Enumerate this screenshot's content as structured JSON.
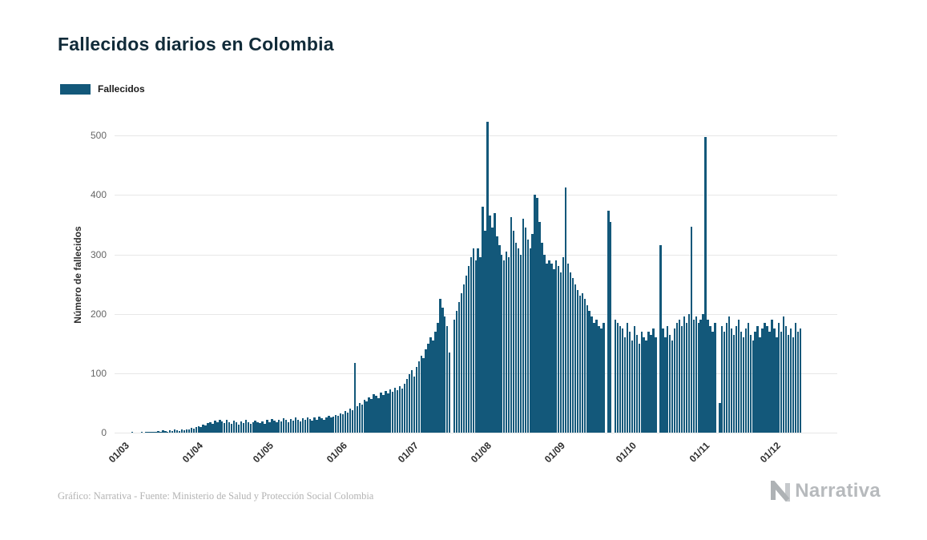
{
  "header": {
    "title": "Fallecidos diarios en Colombia"
  },
  "legend": {
    "label": "Fallecidos"
  },
  "footer": {
    "source": "Gráfico: Narrativa - Fuente: Ministerio de Salud y Protección Social Colombia",
    "brand": "Narrativa"
  },
  "chart_data": {
    "type": "bar",
    "title": "Fallecidos diarios en Colombia",
    "ylabel": "Número de fallecidos",
    "xlabel": "",
    "legend": [
      "Fallecidos"
    ],
    "legend_position": "top-left",
    "grid": "horizontal",
    "bar_color": "#13587a",
    "grid_color": "#e7e7e7",
    "ylim": [
      0,
      530
    ],
    "yticks": [
      0,
      100,
      200,
      300,
      400,
      500
    ],
    "x_unit": "day",
    "axis_days": 305,
    "xticks": [
      {
        "label": "01/03",
        "day": 0
      },
      {
        "label": "01/04",
        "day": 31
      },
      {
        "label": "01/05",
        "day": 61
      },
      {
        "label": "01/06",
        "day": 92
      },
      {
        "label": "01/07",
        "day": 122
      },
      {
        "label": "01/08",
        "day": 153
      },
      {
        "label": "01/09",
        "day": 184
      },
      {
        "label": "01/10",
        "day": 214
      },
      {
        "label": "01/11",
        "day": 245
      },
      {
        "label": "01/12",
        "day": 275
      }
    ],
    "values": [
      0,
      0,
      0,
      0,
      0,
      0,
      0,
      1,
      0,
      0,
      0,
      1,
      0,
      1,
      1,
      2,
      1,
      2,
      3,
      2,
      4,
      3,
      2,
      4,
      3,
      5,
      4,
      3,
      5,
      4,
      5,
      6,
      8,
      7,
      9,
      11,
      10,
      13,
      12,
      16,
      18,
      15,
      20,
      17,
      22,
      19,
      16,
      21,
      18,
      15,
      20,
      17,
      14,
      19,
      16,
      21,
      18,
      15,
      17,
      20,
      18,
      16,
      19,
      15,
      21,
      18,
      23,
      20,
      17,
      22,
      19,
      24,
      21,
      18,
      23,
      20,
      25,
      22,
      19,
      24,
      21,
      26,
      23,
      20,
      25,
      22,
      27,
      24,
      21,
      26,
      28,
      25,
      27,
      30,
      28,
      33,
      31,
      36,
      34,
      40,
      38,
      118,
      45,
      50,
      47,
      55,
      52,
      60,
      57,
      65,
      62,
      58,
      68,
      64,
      70,
      66,
      73,
      69,
      76,
      72,
      78,
      74,
      82,
      90,
      98,
      105,
      95,
      110,
      120,
      130,
      125,
      140,
      150,
      160,
      155,
      170,
      185,
      225,
      210,
      195,
      180,
      135,
      0,
      190,
      205,
      220,
      235,
      250,
      265,
      280,
      295,
      310,
      290,
      310,
      295,
      380,
      340,
      523,
      365,
      345,
      370,
      330,
      315,
      300,
      290,
      305,
      295,
      363,
      340,
      320,
      310,
      300,
      360,
      345,
      325,
      310,
      335,
      400,
      395,
      355,
      320,
      300,
      285,
      290,
      285,
      275,
      290,
      280,
      270,
      295,
      413,
      285,
      270,
      260,
      250,
      240,
      230,
      235,
      225,
      215,
      205,
      195,
      185,
      190,
      180,
      175,
      185,
      0,
      374,
      355,
      0,
      190,
      185,
      180,
      175,
      160,
      185,
      170,
      155,
      180,
      165,
      150,
      170,
      160,
      155,
      170,
      165,
      175,
      160,
      0,
      315,
      175,
      160,
      180,
      165,
      155,
      175,
      185,
      190,
      180,
      195,
      185,
      200,
      347,
      190,
      195,
      185,
      190,
      200,
      497,
      190,
      180,
      170,
      185,
      0,
      50,
      180,
      170,
      185,
      195,
      175,
      165,
      180,
      190,
      170,
      160,
      175,
      185,
      165,
      155,
      170,
      180,
      160,
      175,
      185,
      180,
      170,
      190,
      175,
      160,
      185,
      170,
      195,
      180,
      165,
      175,
      160,
      185,
      170,
      175
    ]
  }
}
